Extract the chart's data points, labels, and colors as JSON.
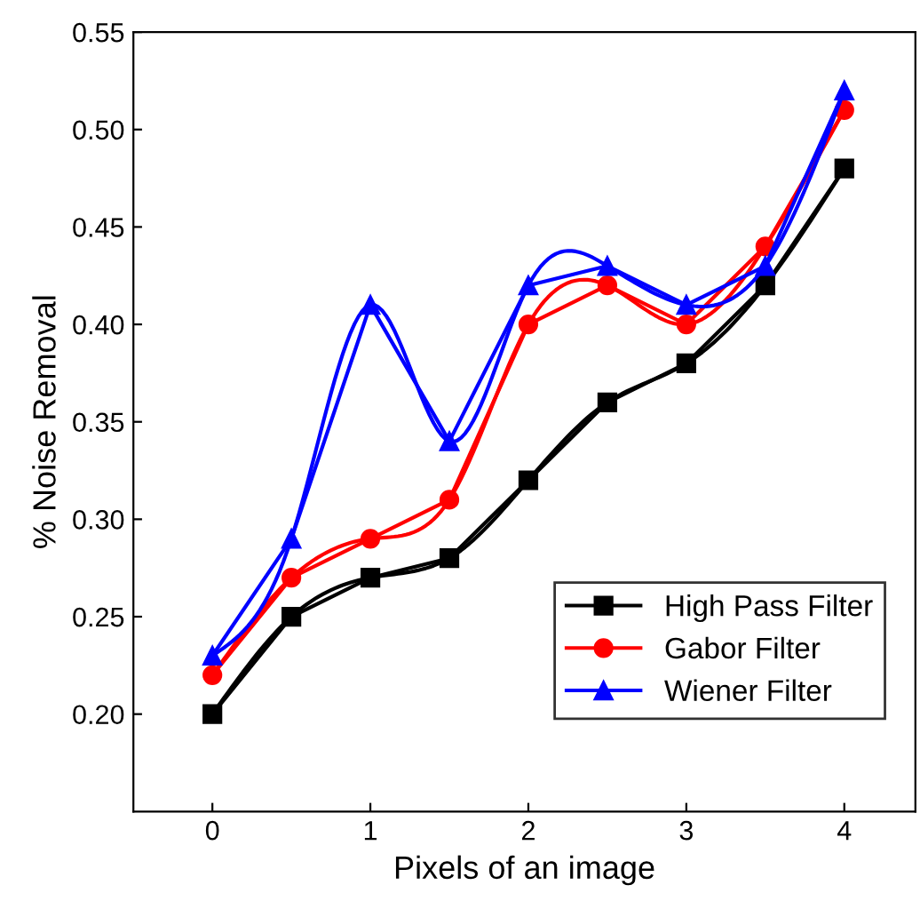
{
  "chart_data": {
    "type": "line",
    "xlabel": "Pixels of an image",
    "ylabel": "% Noise Removal",
    "x": [
      0,
      0.5,
      1,
      1.5,
      2,
      2.5,
      3,
      3.5,
      4
    ],
    "series": [
      {
        "name": "High Pass Filter",
        "color": "#000000",
        "marker": "square",
        "values": [
          0.2,
          0.25,
          0.27,
          0.28,
          0.32,
          0.36,
          0.38,
          0.42,
          0.48
        ]
      },
      {
        "name": "Gabor Filter",
        "color": "#ff0000",
        "marker": "circle",
        "values": [
          0.22,
          0.27,
          0.29,
          0.31,
          0.4,
          0.42,
          0.4,
          0.44,
          0.51
        ]
      },
      {
        "name": "Wiener Filter",
        "color": "#0000ff",
        "marker": "triangle",
        "values": [
          0.23,
          0.29,
          0.41,
          0.34,
          0.42,
          0.43,
          0.41,
          0.43,
          0.52
        ]
      }
    ],
    "xlim": [
      -0.5,
      4.45
    ],
    "xticks": [
      0,
      1,
      2,
      3,
      4
    ],
    "ylim": [
      0.15,
      0.55
    ],
    "yticks": [
      {
        "value": 0.2,
        "label": "0.20"
      },
      {
        "value": 0.25,
        "label": "0.25"
      },
      {
        "value": 0.3,
        "label": "0.30"
      },
      {
        "value": 0.35,
        "label": "0.35"
      },
      {
        "value": 0.4,
        "label": "0.40"
      },
      {
        "value": 0.45,
        "label": "0.45"
      },
      {
        "value": 0.5,
        "label": "0.50"
      },
      {
        "value": 0.55,
        "label": "0.55"
      }
    ],
    "line_style": "solid",
    "grid": false,
    "legend": "bottom right"
  }
}
